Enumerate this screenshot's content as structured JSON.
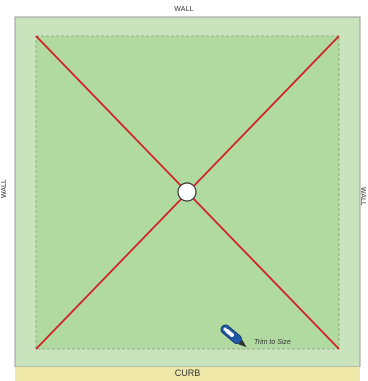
{
  "labels": {
    "wall_top": "WALL",
    "wall_left": "WALL",
    "wall_right": "WALL",
    "curb": "CURB",
    "trim": "Trim to Size"
  },
  "colors": {
    "outer_fill": "#c9e4bd",
    "inner_fill": "#b1daa0",
    "diagonal": "#d11f25",
    "curb": "#efe8a8",
    "drain": "#ffffff",
    "knife": "#1f5aa6"
  },
  "icons": {
    "drain": "drain-circle",
    "tool": "utility-knife-icon"
  }
}
